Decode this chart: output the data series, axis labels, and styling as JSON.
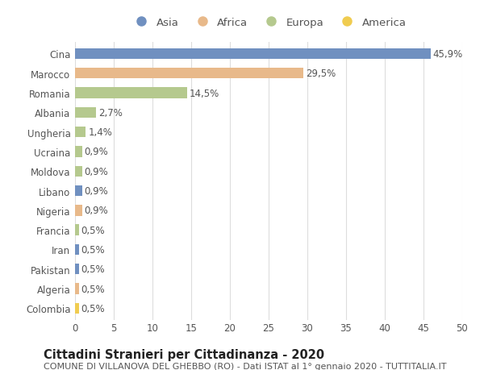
{
  "countries": [
    "Cina",
    "Marocco",
    "Romania",
    "Albania",
    "Ungheria",
    "Ucraina",
    "Moldova",
    "Libano",
    "Nigeria",
    "Francia",
    "Iran",
    "Pakistan",
    "Algeria",
    "Colombia"
  ],
  "values": [
    45.9,
    29.5,
    14.5,
    2.7,
    1.4,
    0.9,
    0.9,
    0.9,
    0.9,
    0.5,
    0.5,
    0.5,
    0.5,
    0.5
  ],
  "labels": [
    "45,9%",
    "29,5%",
    "14,5%",
    "2,7%",
    "1,4%",
    "0,9%",
    "0,9%",
    "0,9%",
    "0,9%",
    "0,5%",
    "0,5%",
    "0,5%",
    "0,5%",
    "0,5%"
  ],
  "continents": [
    "Asia",
    "Africa",
    "Europa",
    "Europa",
    "Europa",
    "Europa",
    "Europa",
    "Asia",
    "Africa",
    "Europa",
    "Asia",
    "Asia",
    "Africa",
    "America"
  ],
  "colors": {
    "Asia": "#7090c0",
    "Africa": "#e8b98a",
    "Europa": "#b5c98e",
    "America": "#f0cc50"
  },
  "xlim": [
    0,
    50
  ],
  "xticks": [
    0,
    5,
    10,
    15,
    20,
    25,
    30,
    35,
    40,
    45,
    50
  ],
  "title": "Cittadini Stranieri per Cittadinanza - 2020",
  "subtitle": "COMUNE DI VILLANOVA DEL GHEBBO (RO) - Dati ISTAT al 1° gennaio 2020 - TUTTITALIA.IT",
  "background_color": "#ffffff",
  "grid_color": "#dddddd",
  "text_color": "#555555",
  "bar_height": 0.55,
  "label_fontsize": 8.5,
  "tick_fontsize": 8.5,
  "title_fontsize": 10.5,
  "subtitle_fontsize": 8,
  "legend_order": [
    "Asia",
    "Africa",
    "Europa",
    "America"
  ]
}
